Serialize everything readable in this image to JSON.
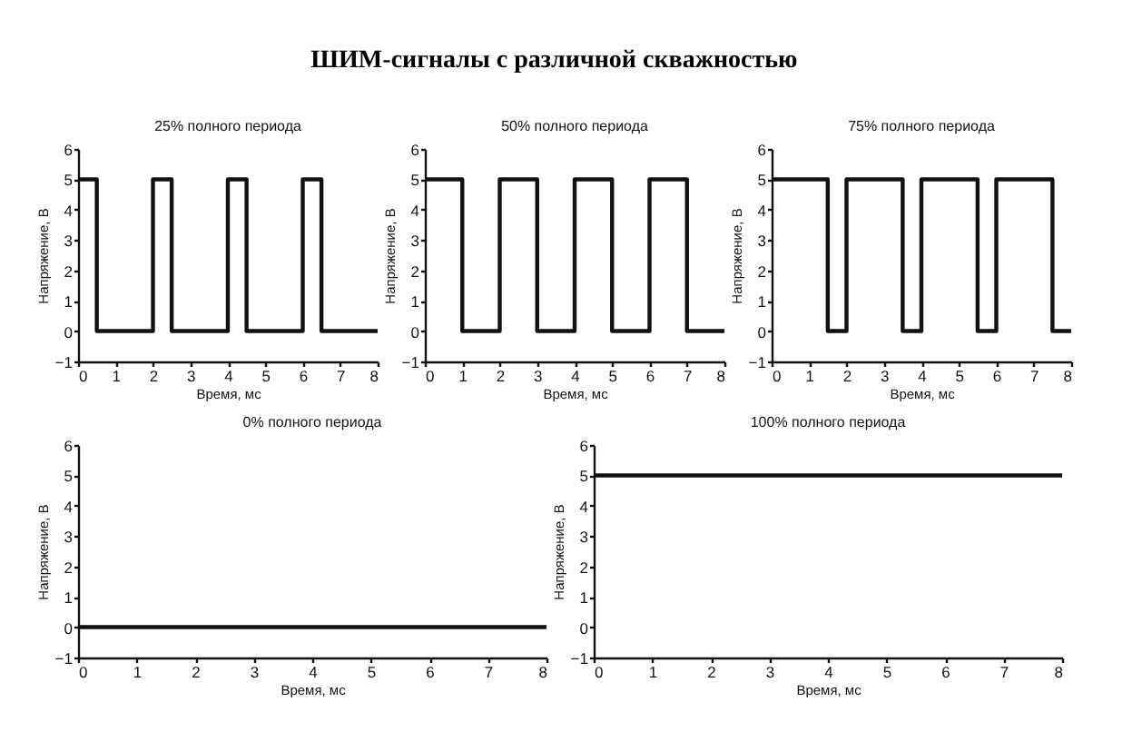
{
  "chart_data": [
    {
      "type": "other",
      "title": "ШИМ-сигналы с различной скважностью"
    },
    {
      "type": "step",
      "title": "25% полного периода",
      "xlabel": "Время, мс",
      "ylabel": "Напряжение, В",
      "x": [
        0,
        0.5,
        2,
        2.5,
        4,
        4.5,
        6,
        6.5,
        8
      ],
      "values": [
        5,
        0,
        5,
        0,
        5,
        0,
        5,
        0,
        0
      ],
      "color": "#111111",
      "line_style": "solid",
      "xlim": [
        0,
        8
      ],
      "ylim": [
        -1,
        6
      ],
      "xticks": [
        0,
        1,
        2,
        3,
        4,
        5,
        6,
        7,
        8
      ],
      "yticks": [
        -1,
        0,
        1,
        2,
        3,
        4,
        5,
        6
      ]
    },
    {
      "type": "step",
      "title": "50% полного периода",
      "xlabel": "Время, мс",
      "ylabel": "Напряжение, В",
      "x": [
        0,
        1,
        2,
        3,
        4,
        5,
        6,
        7,
        8
      ],
      "values": [
        5,
        0,
        5,
        0,
        5,
        0,
        5,
        0,
        0
      ],
      "color": "#111111",
      "line_style": "solid",
      "xlim": [
        0,
        8
      ],
      "ylim": [
        -1,
        6
      ],
      "xticks": [
        0,
        1,
        2,
        3,
        4,
        5,
        6,
        7,
        8
      ],
      "yticks": [
        -1,
        0,
        1,
        2,
        3,
        4,
        5,
        6
      ]
    },
    {
      "type": "step",
      "title": "75% полного периода",
      "xlabel": "Время, мс",
      "ylabel": "Напряжение, В",
      "x": [
        0,
        1.5,
        2,
        3.5,
        4,
        5.5,
        6,
        7.5,
        8
      ],
      "values": [
        5,
        0,
        5,
        0,
        5,
        0,
        5,
        0,
        0
      ],
      "color": "#111111",
      "line_style": "solid",
      "xlim": [
        0,
        8
      ],
      "ylim": [
        -1,
        6
      ],
      "xticks": [
        0,
        1,
        2,
        3,
        4,
        5,
        6,
        7,
        8
      ],
      "yticks": [
        -1,
        0,
        1,
        2,
        3,
        4,
        5,
        6
      ]
    },
    {
      "type": "step",
      "title": "0% полного периода",
      "xlabel": "Время, мс",
      "ylabel": "Напряжение, В",
      "x": [
        0,
        8
      ],
      "values": [
        0,
        0
      ],
      "color": "#111111",
      "line_style": "solid",
      "xlim": [
        0,
        8
      ],
      "ylim": [
        -1,
        6
      ],
      "xticks": [
        0,
        1,
        2,
        3,
        4,
        5,
        6,
        7,
        8
      ],
      "yticks": [
        -1,
        0,
        1,
        2,
        3,
        4,
        5,
        6
      ]
    },
    {
      "type": "step",
      "title": "100% полного периода",
      "xlabel": "Время, мс",
      "ylabel": "Напряжение, В",
      "x": [
        0,
        8
      ],
      "values": [
        5,
        5
      ],
      "color": "#111111",
      "line_style": "solid",
      "xlim": [
        0,
        8
      ],
      "ylim": [
        -1,
        6
      ],
      "xticks": [
        0,
        1,
        2,
        3,
        4,
        5,
        6,
        7,
        8
      ],
      "yticks": [
        -1,
        0,
        1,
        2,
        3,
        4,
        5,
        6
      ]
    }
  ]
}
